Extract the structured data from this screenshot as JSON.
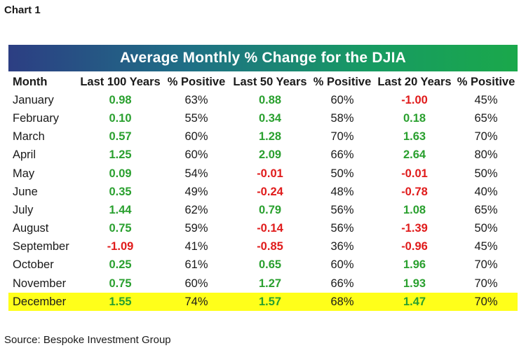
{
  "chart_label": "Chart 1",
  "chart_data": {
    "type": "table",
    "title": "Average Monthly % Change for the DJIA",
    "columns": [
      "Month",
      "Last 100 Years",
      "% Positive",
      "Last 50 Years",
      "% Positive",
      "Last 20 Years",
      "% Positive"
    ],
    "rows": [
      [
        "January",
        0.98,
        "63%",
        0.88,
        "60%",
        -1.0,
        "45%"
      ],
      [
        "February",
        0.1,
        "55%",
        0.34,
        "58%",
        0.18,
        "65%"
      ],
      [
        "March",
        0.57,
        "60%",
        1.28,
        "70%",
        1.63,
        "70%"
      ],
      [
        "April",
        1.25,
        "60%",
        2.09,
        "66%",
        2.64,
        "80%"
      ],
      [
        "May",
        0.09,
        "54%",
        -0.01,
        "50%",
        -0.01,
        "50%"
      ],
      [
        "June",
        0.35,
        "49%",
        -0.24,
        "48%",
        -0.78,
        "40%"
      ],
      [
        "July",
        1.44,
        "62%",
        0.79,
        "56%",
        1.08,
        "65%"
      ],
      [
        "August",
        0.75,
        "59%",
        -0.14,
        "56%",
        -1.39,
        "50%"
      ],
      [
        "September",
        -1.09,
        "41%",
        -0.85,
        "36%",
        -0.96,
        "45%"
      ],
      [
        "October",
        0.25,
        "61%",
        0.65,
        "60%",
        1.96,
        "70%"
      ],
      [
        "November",
        0.75,
        "60%",
        1.27,
        "66%",
        1.93,
        "70%"
      ],
      [
        "December",
        1.55,
        "74%",
        1.57,
        "68%",
        1.47,
        "70%"
      ]
    ],
    "highlighted_row": "December",
    "colors": {
      "positive": "#2aa02f",
      "negative": "#e01b1b",
      "highlight": "#ffff1a",
      "banner_start": "#2c3e83",
      "banner_end": "#1aa84b"
    }
  },
  "source": "Source: Bespoke Investment Group"
}
